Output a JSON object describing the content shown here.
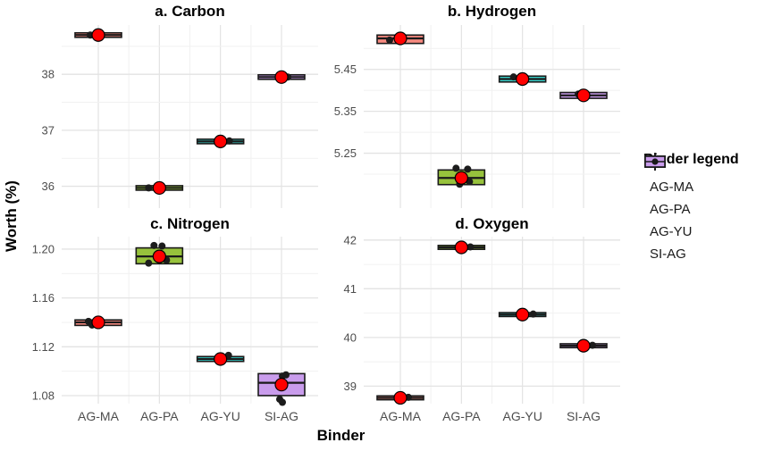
{
  "figure": {
    "y_axis_title": "Worth (%)",
    "x_axis_title": "Binder",
    "background": "#ffffff"
  },
  "legend": {
    "title": "Binder legend",
    "items": [
      {
        "label": "AG-MA",
        "fill": "#F5897F"
      },
      {
        "label": "AG-PA",
        "fill": "#97C23C"
      },
      {
        "label": "AG-YU",
        "fill": "#38D2CC"
      },
      {
        "label": "SI-AG",
        "fill": "#C99CEC"
      }
    ]
  },
  "chart_data": {
    "type": "boxplot",
    "categories": [
      "AG-MA",
      "AG-PA",
      "AG-YU",
      "SI-AG"
    ],
    "category_fills": {
      "AG-MA": "#F5897F",
      "AG-PA": "#97C23C",
      "AG-YU": "#38D2CC",
      "SI-AG": "#C99CEC"
    },
    "style": {
      "mean_point_color": "#FF0000",
      "jitter_point_color": "#1C1C1C",
      "box_stroke": "#1A1A1A",
      "grid_major_color": "#E3E3E3",
      "grid_minor_color": "#F1F1F1",
      "tick_label_color": "#4D4D4D",
      "title_color": "#000000"
    },
    "facets": [
      {
        "title": "a. Carbon",
        "ylim": [
          35.61,
          38.88
        ],
        "yticks": [
          36,
          37,
          38
        ],
        "ytick_labels": [
          "36",
          "37",
          "38"
        ],
        "boxes": [
          {
            "category": "AG-MA",
            "q1": 38.66,
            "median": 38.7,
            "q3": 38.74,
            "mean": 38.7,
            "points": [
              [
                38.7,
                -9
              ]
            ]
          },
          {
            "category": "AG-PA",
            "q1": 35.93,
            "median": 35.97,
            "q3": 36.01,
            "mean": 35.97,
            "points": [
              [
                35.97,
                -12
              ]
            ]
          },
          {
            "category": "AG-YU",
            "q1": 36.76,
            "median": 36.8,
            "q3": 36.84,
            "mean": 36.8,
            "points": [
              [
                36.81,
                10
              ]
            ]
          },
          {
            "category": "SI-AG",
            "q1": 37.91,
            "median": 37.95,
            "q3": 37.99,
            "mean": 37.95,
            "points": [
              [
                37.95,
                7
              ]
            ]
          }
        ]
      },
      {
        "title": "b. Hydrogen",
        "ylim": [
          5.119,
          5.556
        ],
        "yticks": [
          5.25,
          5.35,
          5.45
        ],
        "ytick_labels": [
          "5.25",
          "5.35",
          "5.45"
        ],
        "boxes": [
          {
            "category": "AG-MA",
            "q1": 5.512,
            "median": 5.524,
            "q3": 5.532,
            "mean": 5.524,
            "points": [
              [
                5.52,
                -12
              ]
            ]
          },
          {
            "category": "AG-PA",
            "q1": 5.175,
            "median": 5.191,
            "q3": 5.21,
            "mean": 5.191,
            "points": [
              [
                5.214,
                -6
              ],
              [
                5.212,
                7
              ],
              [
                5.176,
                -2
              ],
              [
                5.182,
                9
              ]
            ]
          },
          {
            "category": "AG-YU",
            "q1": 5.42,
            "median": 5.427,
            "q3": 5.434,
            "mean": 5.427,
            "points": [
              [
                5.432,
                -10
              ]
            ]
          },
          {
            "category": "SI-AG",
            "q1": 5.381,
            "median": 5.388,
            "q3": 5.395,
            "mean": 5.388,
            "points": [
              [
                5.391,
                -6
              ]
            ]
          }
        ]
      },
      {
        "title": "c. Nitrogen",
        "ylim": [
          1.0734,
          1.2102
        ],
        "yticks": [
          1.08,
          1.12,
          1.16,
          1.2
        ],
        "ytick_labels": [
          "1.08",
          "1.12",
          "1.16",
          "1.20"
        ],
        "boxes": [
          {
            "category": "AG-MA",
            "q1": 1.1375,
            "median": 1.14,
            "q3": 1.142,
            "mean": 1.14,
            "points": [
              [
                1.1408,
                -11
              ],
              [
                1.1378,
                -7
              ]
            ]
          },
          {
            "category": "AG-PA",
            "q1": 1.188,
            "median": 1.194,
            "q3": 1.201,
            "mean": 1.194,
            "points": [
              [
                1.203,
                -6
              ],
              [
                1.2025,
                3
              ],
              [
                1.1885,
                -12
              ],
              [
                1.191,
                8
              ]
            ]
          },
          {
            "category": "AG-YU",
            "q1": 1.108,
            "median": 1.11,
            "q3": 1.112,
            "mean": 1.11,
            "points": [
              [
                1.113,
                9
              ]
            ]
          },
          {
            "category": "SI-AG",
            "q1": 1.08,
            "median": 1.0905,
            "q3": 1.098,
            "mean": 1.089,
            "points": [
              [
                1.096,
                1
              ],
              [
                1.097,
                5
              ],
              [
                1.077,
                -2
              ],
              [
                1.0745,
                1
              ]
            ]
          }
        ]
      },
      {
        "title": "d. Oxygen",
        "ylim": [
          38.64,
          42.07
        ],
        "yticks": [
          39,
          40,
          41,
          42
        ],
        "ytick_labels": [
          "39",
          "40",
          "41",
          "42"
        ],
        "boxes": [
          {
            "category": "AG-MA",
            "q1": 38.72,
            "median": 38.76,
            "q3": 38.8,
            "mean": 38.76,
            "points": [
              [
                38.77,
                9
              ]
            ]
          },
          {
            "category": "AG-PA",
            "q1": 41.81,
            "median": 41.85,
            "q3": 41.89,
            "mean": 41.85,
            "points": [
              [
                41.86,
                10
              ]
            ]
          },
          {
            "category": "AG-YU",
            "q1": 40.43,
            "median": 40.47,
            "q3": 40.51,
            "mean": 40.47,
            "points": [
              [
                40.48,
                12
              ]
            ]
          },
          {
            "category": "SI-AG",
            "q1": 39.79,
            "median": 39.83,
            "q3": 39.87,
            "mean": 39.83,
            "points": [
              [
                39.84,
                10
              ]
            ]
          }
        ]
      }
    ],
    "layout_hints": {
      "grid": "major+minor horizontal, major vertical at categories",
      "legend_position": "right",
      "facet_grid": "2x2, free y scales"
    }
  }
}
